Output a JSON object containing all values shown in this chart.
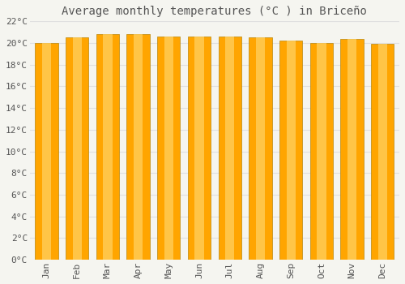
{
  "title": "Average monthly temperatures (°C ) in Briceño",
  "months": [
    "Jan",
    "Feb",
    "Mar",
    "Apr",
    "May",
    "Jun",
    "Jul",
    "Aug",
    "Sep",
    "Oct",
    "Nov",
    "Dec"
  ],
  "temperatures": [
    20.0,
    20.5,
    20.8,
    20.8,
    20.6,
    20.6,
    20.6,
    20.5,
    20.2,
    20.0,
    20.4,
    19.9
  ],
  "bar_color": "#FFA500",
  "bar_color_light": "#FFD060",
  "bar_edge_color": "#B8860B",
  "background_color": "#F5F5F0",
  "grid_color": "#E0E0E0",
  "text_color": "#555555",
  "ylim": [
    0,
    22
  ],
  "ytick_step": 2,
  "title_fontsize": 10,
  "tick_fontsize": 8,
  "bar_width": 0.75
}
